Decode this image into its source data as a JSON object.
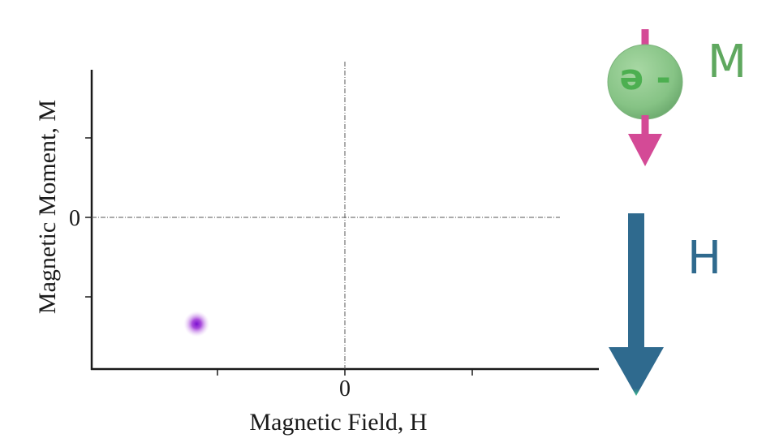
{
  "chart_data": {
    "type": "scatter",
    "xlabel": "Magnetic Field, H",
    "ylabel": "Magnetic Moment, M",
    "x_tick_label": "0",
    "y_tick_label": "0",
    "points": [
      {
        "x": -0.58,
        "y": -0.71
      }
    ],
    "xlim": [
      -1.0,
      1.0
    ],
    "ylim": [
      -1.0,
      1.0
    ],
    "point_color": "#9b2fd6"
  },
  "electron": {
    "label": "- e",
    "moment_symbol": "M",
    "sphere_color": "#8fc98f",
    "text_color": "#4caf50",
    "arrow_color": "#d44a96"
  },
  "field": {
    "symbol": "H",
    "arrow_color": "#2f6a8e",
    "arrow_tip_color": "#3fbf8f"
  }
}
